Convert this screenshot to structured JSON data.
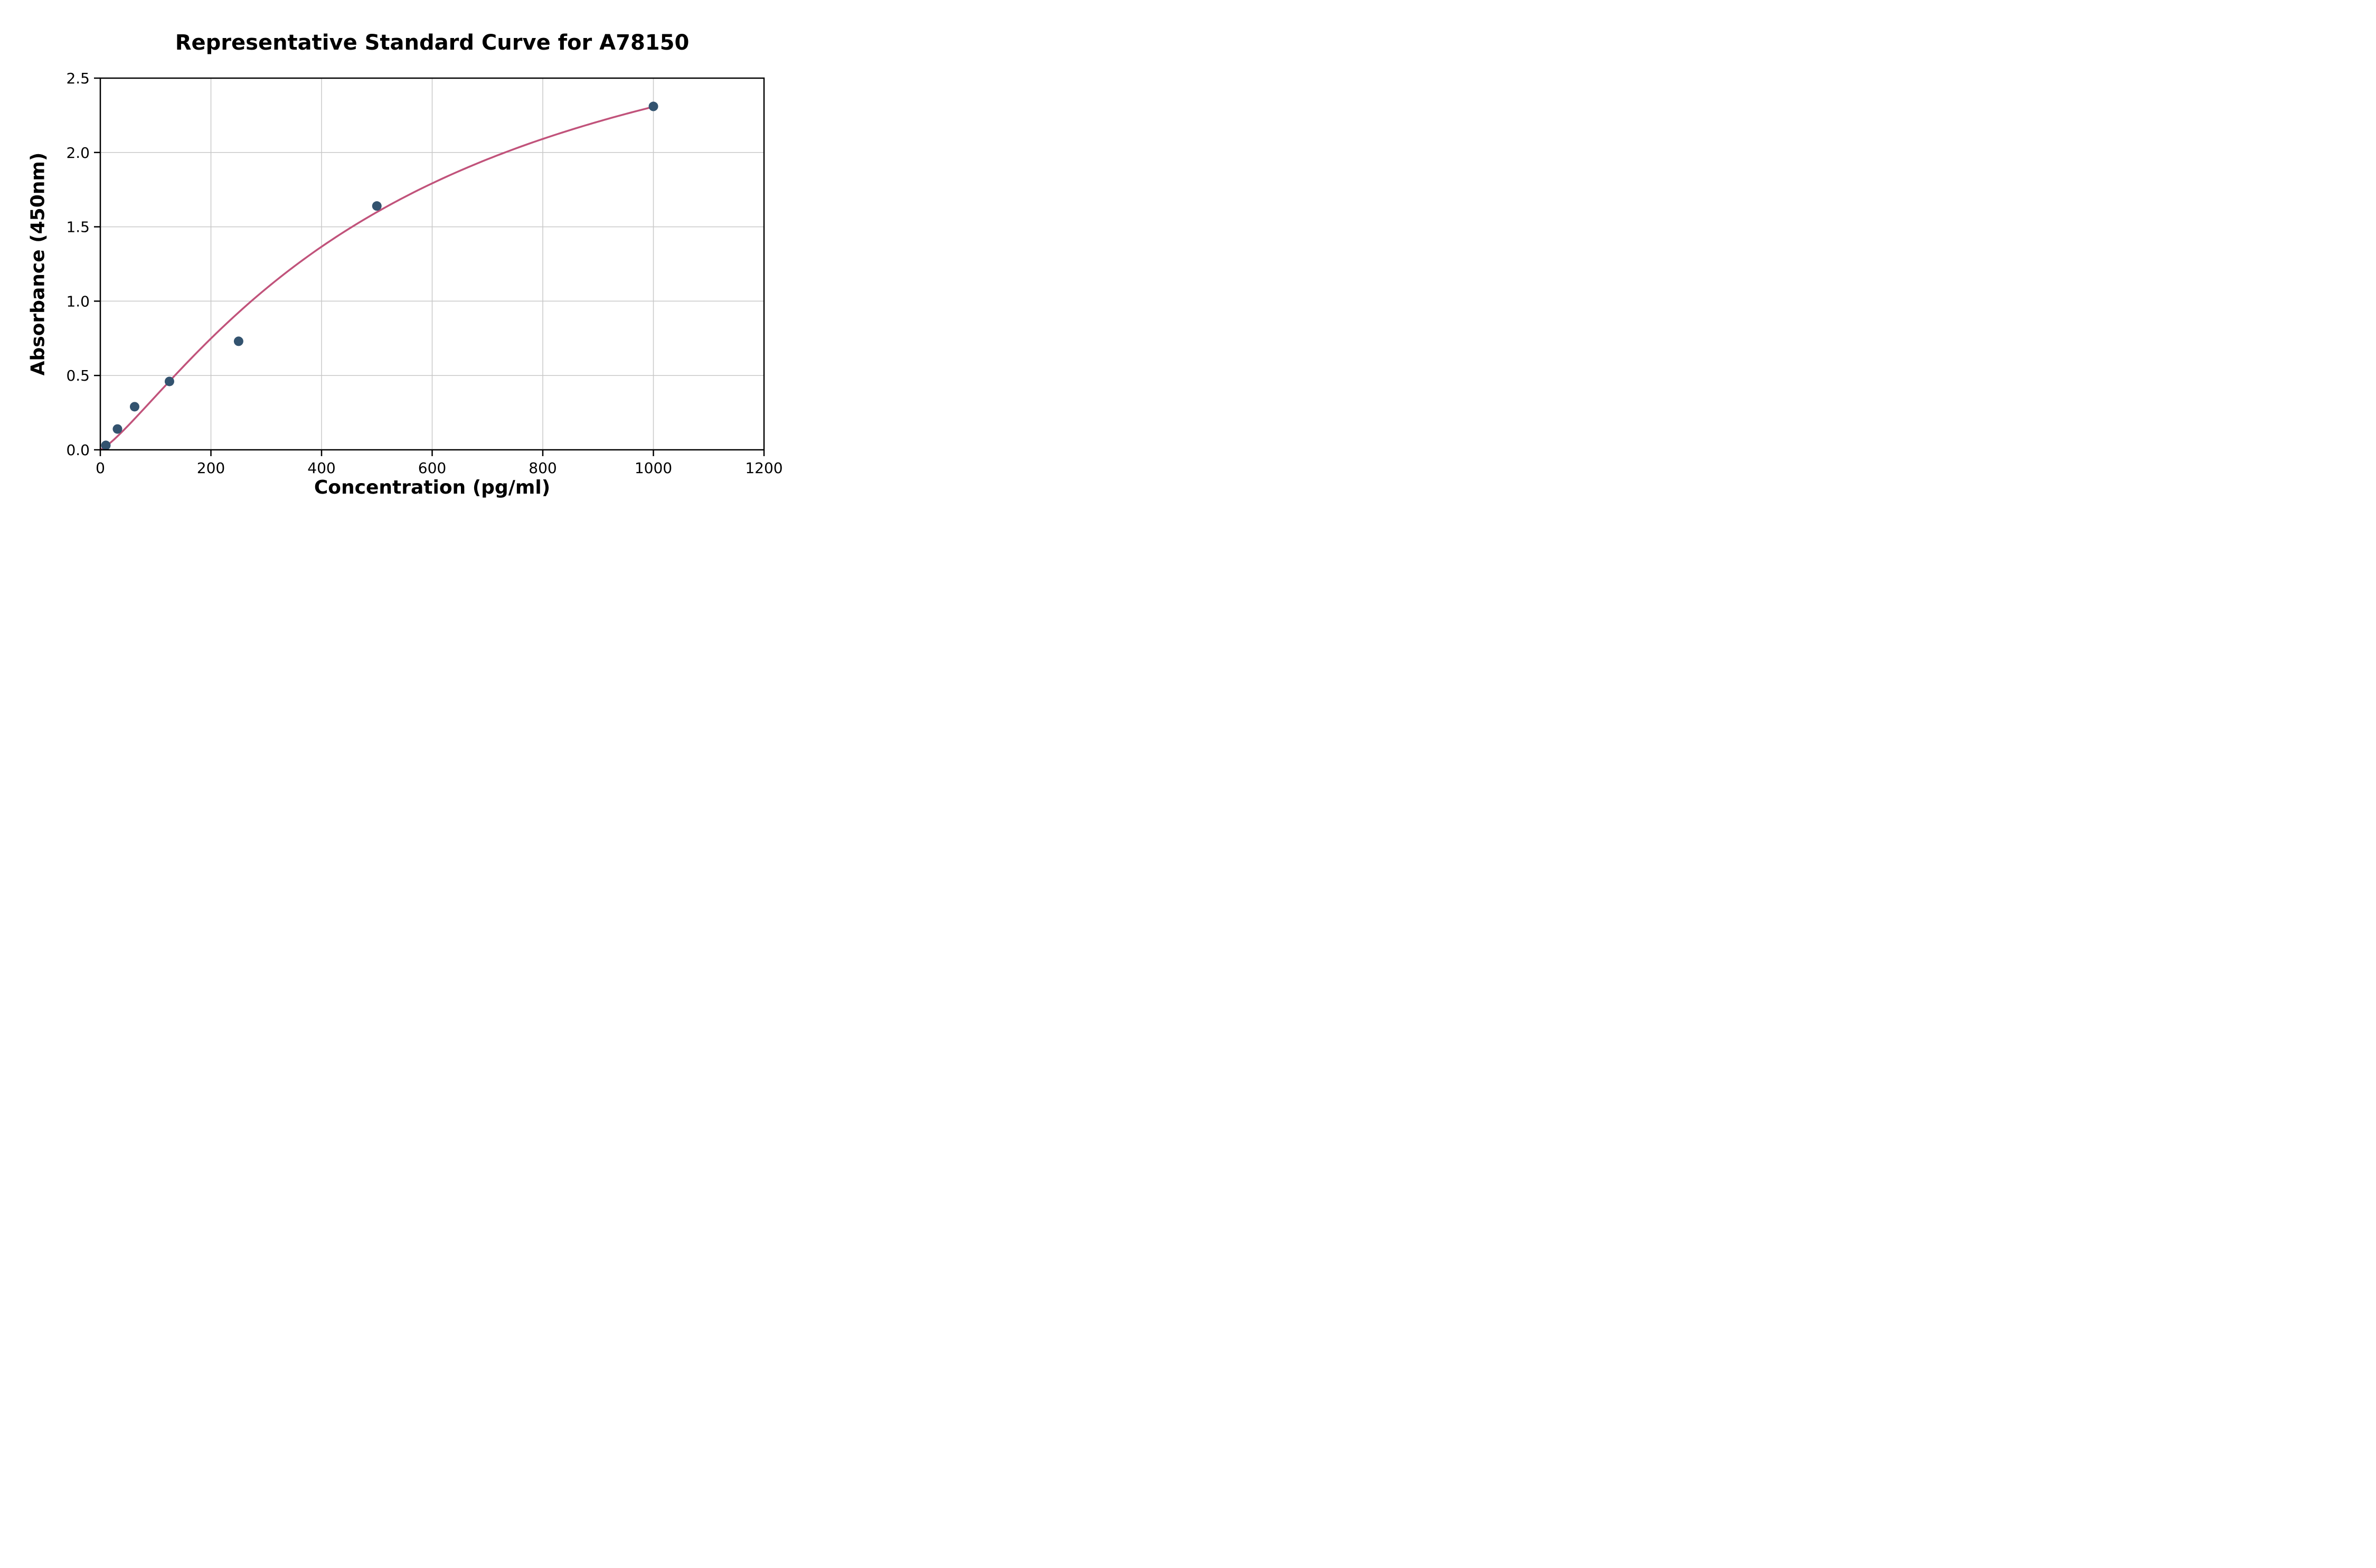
{
  "chart_data": {
    "type": "scatter",
    "title": "Representative Standard Curve for A78150",
    "xlabel": "Concentration (pg/ml)",
    "ylabel": "Absorbance (450nm)",
    "xlim": [
      0,
      1200
    ],
    "ylim": [
      0,
      2.5
    ],
    "xticks": [
      0,
      200,
      400,
      600,
      800,
      1000,
      1200
    ],
    "xtick_labels": [
      "0",
      "200",
      "400",
      "600",
      "800",
      "1000",
      "1200"
    ],
    "yticks": [
      0.0,
      0.5,
      1.0,
      1.5,
      2.0,
      2.5
    ],
    "ytick_labels": [
      "0.0",
      "0.5",
      "1.0",
      "1.5",
      "2.0",
      "2.5"
    ],
    "grid": true,
    "legend": "none",
    "points": [
      {
        "x": 10,
        "y": 0.03
      },
      {
        "x": 31,
        "y": 0.14
      },
      {
        "x": 62,
        "y": 0.29
      },
      {
        "x": 125,
        "y": 0.46
      },
      {
        "x": 250,
        "y": 0.73
      },
      {
        "x": 500,
        "y": 1.64
      },
      {
        "x": 1000,
        "y": 2.31
      }
    ],
    "fit_curve": {
      "model": "4PL",
      "a": 0.0,
      "b": 1.25,
      "c": 550,
      "d": 3.4,
      "x_range": [
        0,
        1000
      ]
    },
    "colors": {
      "point": "#33536f",
      "curve": "#c1537b",
      "grid": "#c8c8c8",
      "axis": "#000000",
      "background": "#ffffff"
    }
  }
}
